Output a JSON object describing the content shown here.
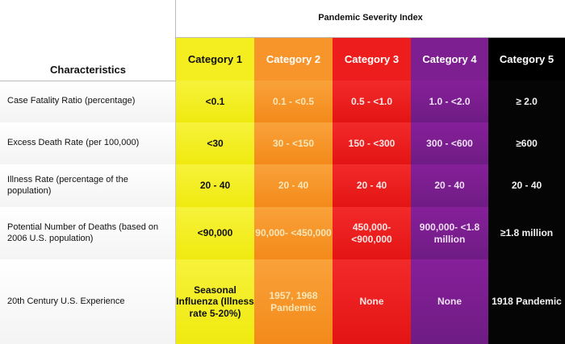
{
  "header": {
    "characteristics_label": "Characteristics",
    "index_title": "Pandemic Severity Index"
  },
  "categories": [
    {
      "label": "Category 1",
      "color": "#f4ee20"
    },
    {
      "label": "Category 2",
      "color": "#f7942a"
    },
    {
      "label": "Category 3",
      "color": "#ee1d1d"
    },
    {
      "label": "Category 4",
      "color": "#7d1f90"
    },
    {
      "label": "Category 5",
      "color": "#000000"
    }
  ],
  "rows": [
    {
      "label": "Case Fatality Ratio (percentage)",
      "values": [
        "<0.1",
        "0.1 -  <0.5",
        "0.5 -  <1.0",
        "1.0 -  <2.0",
        "≥ 2.0"
      ]
    },
    {
      "label": "Excess Death Rate (per 100,000)",
      "values": [
        "<30",
        "30 -  <150",
        "150 -  <300",
        "300 -  <600",
        "≥600"
      ]
    },
    {
      "label": "Illness Rate (percentage of the population)",
      "values": [
        "20 - 40",
        "20 - 40",
        "20 - 40",
        "20 - 40",
        "20 - 40"
      ]
    },
    {
      "label": "Potential Number of Deaths (based on 2006 U.S. population)",
      "values": [
        "<90,000",
        "90,000- <450,000",
        "450,000- <900,000",
        "900,000- <1.8 million",
        "≥1.8 million"
      ]
    },
    {
      "label": "20th Century U.S. Experience",
      "values": [
        "Seasonal Influenza (Illness rate 5-20%)",
        "1957, 1968 Pandemic",
        "None",
        "None",
        "1918 Pandemic"
      ]
    }
  ]
}
